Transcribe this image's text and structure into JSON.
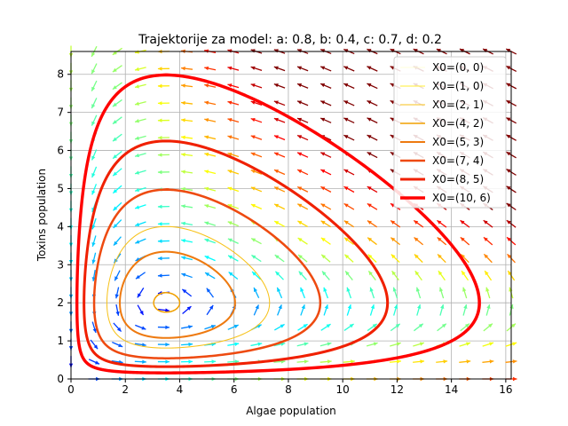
{
  "chart_data": {
    "type": "line",
    "title": "Trajektorije za model: a: 0.8, b: 0.4, c: 0.7, d: 0.2",
    "xlabel": "Algae population",
    "ylabel": "Toxins population",
    "xlim": [
      0,
      16.2
    ],
    "ylim": [
      0,
      8.6
    ],
    "xticks": [
      0,
      2,
      4,
      6,
      8,
      10,
      12,
      14,
      16
    ],
    "yticks": [
      0,
      1,
      2,
      3,
      4,
      5,
      6,
      7,
      8
    ],
    "grid": true,
    "legend_position": "top-right",
    "model": {
      "a": 0.8,
      "b": 0.4,
      "c": 0.7,
      "d": 0.2
    },
    "equilibrium": [
      3.5,
      2.0
    ],
    "series": [
      {
        "name": "X0=(0, 0)",
        "x0": [
          0,
          0
        ],
        "color": "#ffffcc"
      },
      {
        "name": "X0=(1, 0)",
        "x0": [
          1,
          0
        ],
        "color": "#ffee33"
      },
      {
        "name": "X0=(2, 1)",
        "x0": [
          2,
          1
        ],
        "color": "#f7c21a"
      },
      {
        "name": "X0=(4, 2)",
        "x0": [
          4,
          2
        ],
        "color": "#f0a000"
      },
      {
        "name": "X0=(5, 3)",
        "x0": [
          5,
          3
        ],
        "color": "#ee7a10"
      },
      {
        "name": "X0=(7, 4)",
        "x0": [
          7,
          4
        ],
        "color": "#ee4a10"
      },
      {
        "name": "X0=(8, 5)",
        "x0": [
          8,
          5
        ],
        "color": "#f02000"
      },
      {
        "name": "X0=(10, 6)",
        "x0": [
          10,
          6
        ],
        "color": "#ff0000"
      }
    ]
  }
}
